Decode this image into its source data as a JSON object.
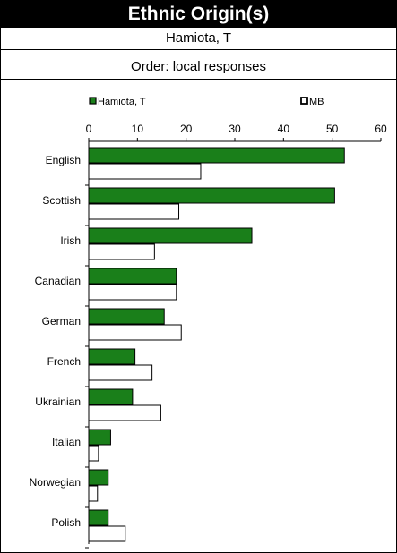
{
  "chart_data": {
    "type": "bar",
    "orientation": "horizontal",
    "title": "Ethnic Origin(s)",
    "subtitle": "Hamiota, T",
    "subtitle2": "Order: local responses",
    "categories": [
      "English",
      "Scottish",
      "Irish",
      "Canadian",
      "German",
      "French",
      "Ukrainian",
      "Italian",
      "Norwegian",
      "Polish"
    ],
    "series": [
      {
        "name": "Hamiota, T",
        "color": "#1a7f1a",
        "values": [
          52.5,
          50.5,
          33.5,
          18,
          15.5,
          9.5,
          9,
          4.5,
          4,
          4
        ]
      },
      {
        "name": "MB",
        "color": "#ffffff",
        "values": [
          23,
          18.5,
          13.5,
          18,
          19,
          13,
          14.8,
          2,
          1.8,
          7.5
        ]
      }
    ],
    "xlim": [
      0,
      60
    ],
    "xticks": [
      "0",
      "10",
      "20",
      "30",
      "40",
      "50",
      "60"
    ],
    "grid": false,
    "legend_position": "top"
  }
}
